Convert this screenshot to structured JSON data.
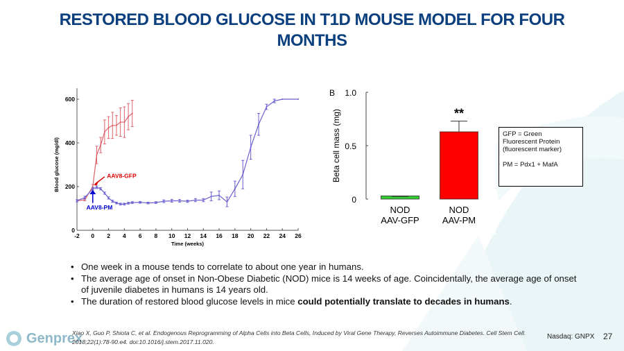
{
  "title": "RESTORED BLOOD GLUCOSE IN T1D MOUSE MODEL FOR FOUR MONTHS",
  "chart_data": [
    {
      "type": "line",
      "xlabel": "Time (weeks)",
      "ylabel": "Blood glucose (mg/dl)",
      "xlim": [
        -2,
        26
      ],
      "ylim": [
        0,
        650
      ],
      "xticks": [
        -2,
        0,
        2,
        4,
        6,
        8,
        10,
        12,
        14,
        16,
        18,
        20,
        22,
        24,
        26
      ],
      "yticks": [
        0,
        200,
        400,
        600
      ],
      "series": [
        {
          "name": "AAV8-GFP",
          "color": "#e0606a",
          "x": [
            -2,
            -1,
            0,
            0.5,
            1,
            1.5,
            2,
            2.5,
            3,
            3.5,
            4,
            4.5,
            5
          ],
          "y": [
            135,
            140,
            200,
            345,
            390,
            450,
            470,
            480,
            480,
            495,
            495,
            520,
            535
          ],
          "err": [
            0,
            5,
            10,
            40,
            35,
            55,
            50,
            60,
            45,
            65,
            70,
            60,
            60
          ]
        },
        {
          "name": "AAV8-PM",
          "color": "#6a5fd0",
          "x": [
            -2,
            -1,
            0,
            0.5,
            1,
            1.5,
            2,
            2.5,
            3,
            3.5,
            4,
            4.5,
            5,
            6,
            7,
            8,
            9,
            10,
            11,
            12,
            13,
            14,
            15,
            16,
            17,
            18,
            19,
            20,
            21,
            22,
            23,
            24,
            26
          ],
          "y": [
            135,
            150,
            190,
            197,
            190,
            170,
            148,
            133,
            125,
            120,
            120,
            124,
            127,
            128,
            125,
            127,
            133,
            135,
            135,
            133,
            138,
            138,
            155,
            160,
            130,
            190,
            255,
            380,
            485,
            565,
            592,
            600,
            600
          ],
          "err": [
            5,
            6,
            6,
            6,
            5,
            5,
            5,
            5,
            4,
            4,
            4,
            4,
            4,
            4,
            4,
            4,
            6,
            6,
            6,
            5,
            7,
            7,
            20,
            20,
            22,
            35,
            65,
            55,
            50,
            12,
            8,
            0,
            0
          ]
        }
      ],
      "annotations": [
        "AAV8-GFP",
        "AAV8-PM"
      ]
    },
    {
      "type": "bar",
      "panel": "B",
      "ylabel": "Beta cell mass (mg)",
      "ylim": [
        0,
        1.0
      ],
      "yticks": [
        "0",
        "0.5",
        "1.0"
      ],
      "categories": [
        "NOD\nAAV-GFP",
        "NOD\nAAV-PM"
      ],
      "category_lines": [
        [
          "NOD",
          "AAV-GFP"
        ],
        [
          "NOD",
          "AAV-PM"
        ]
      ],
      "values": [
        0.02,
        0.63
      ],
      "err": [
        0.005,
        0.1
      ],
      "colors": [
        "#33cc33",
        "#ff0000"
      ],
      "significance": "**"
    }
  ],
  "legend_box": {
    "line1": "GFP = Green",
    "line2": "Fluorescent Protein",
    "line3": "(fluorescent marker)",
    "line4": "PM = Pdx1 + MafA"
  },
  "bullets": [
    {
      "text": "One week in a mouse tends to correlate to about one year in humans."
    },
    {
      "text": "The average age of onset in Non-Obese Diabetic (NOD) mice is 14 weeks of age. Coincidentally, the average age of onset of juvenile diabetes in humans is 14 years old."
    },
    {
      "text": "The duration of restored blood glucose levels in mice ",
      "bold": "could potentially translate to decades in humans",
      "tail": "."
    }
  ],
  "citation": "Xiao X, Guo P, Shiota C, et al. Endogenous Reprogramming of Alpha Cells into Beta Cells, Induced by Viral Gene Therapy, Reverses Autoimmune Diabetes. Cell Stem Cell. 2018;22(1):78-90.e4. doi:10.1016/j.stem.2017.11.020.",
  "footer": {
    "logo": "Genprex",
    "ticker": "Nasdaq: GNPX",
    "page": "27"
  },
  "colors": {
    "title": "#0b3f7d",
    "swoosh": "#e8f4f6"
  }
}
